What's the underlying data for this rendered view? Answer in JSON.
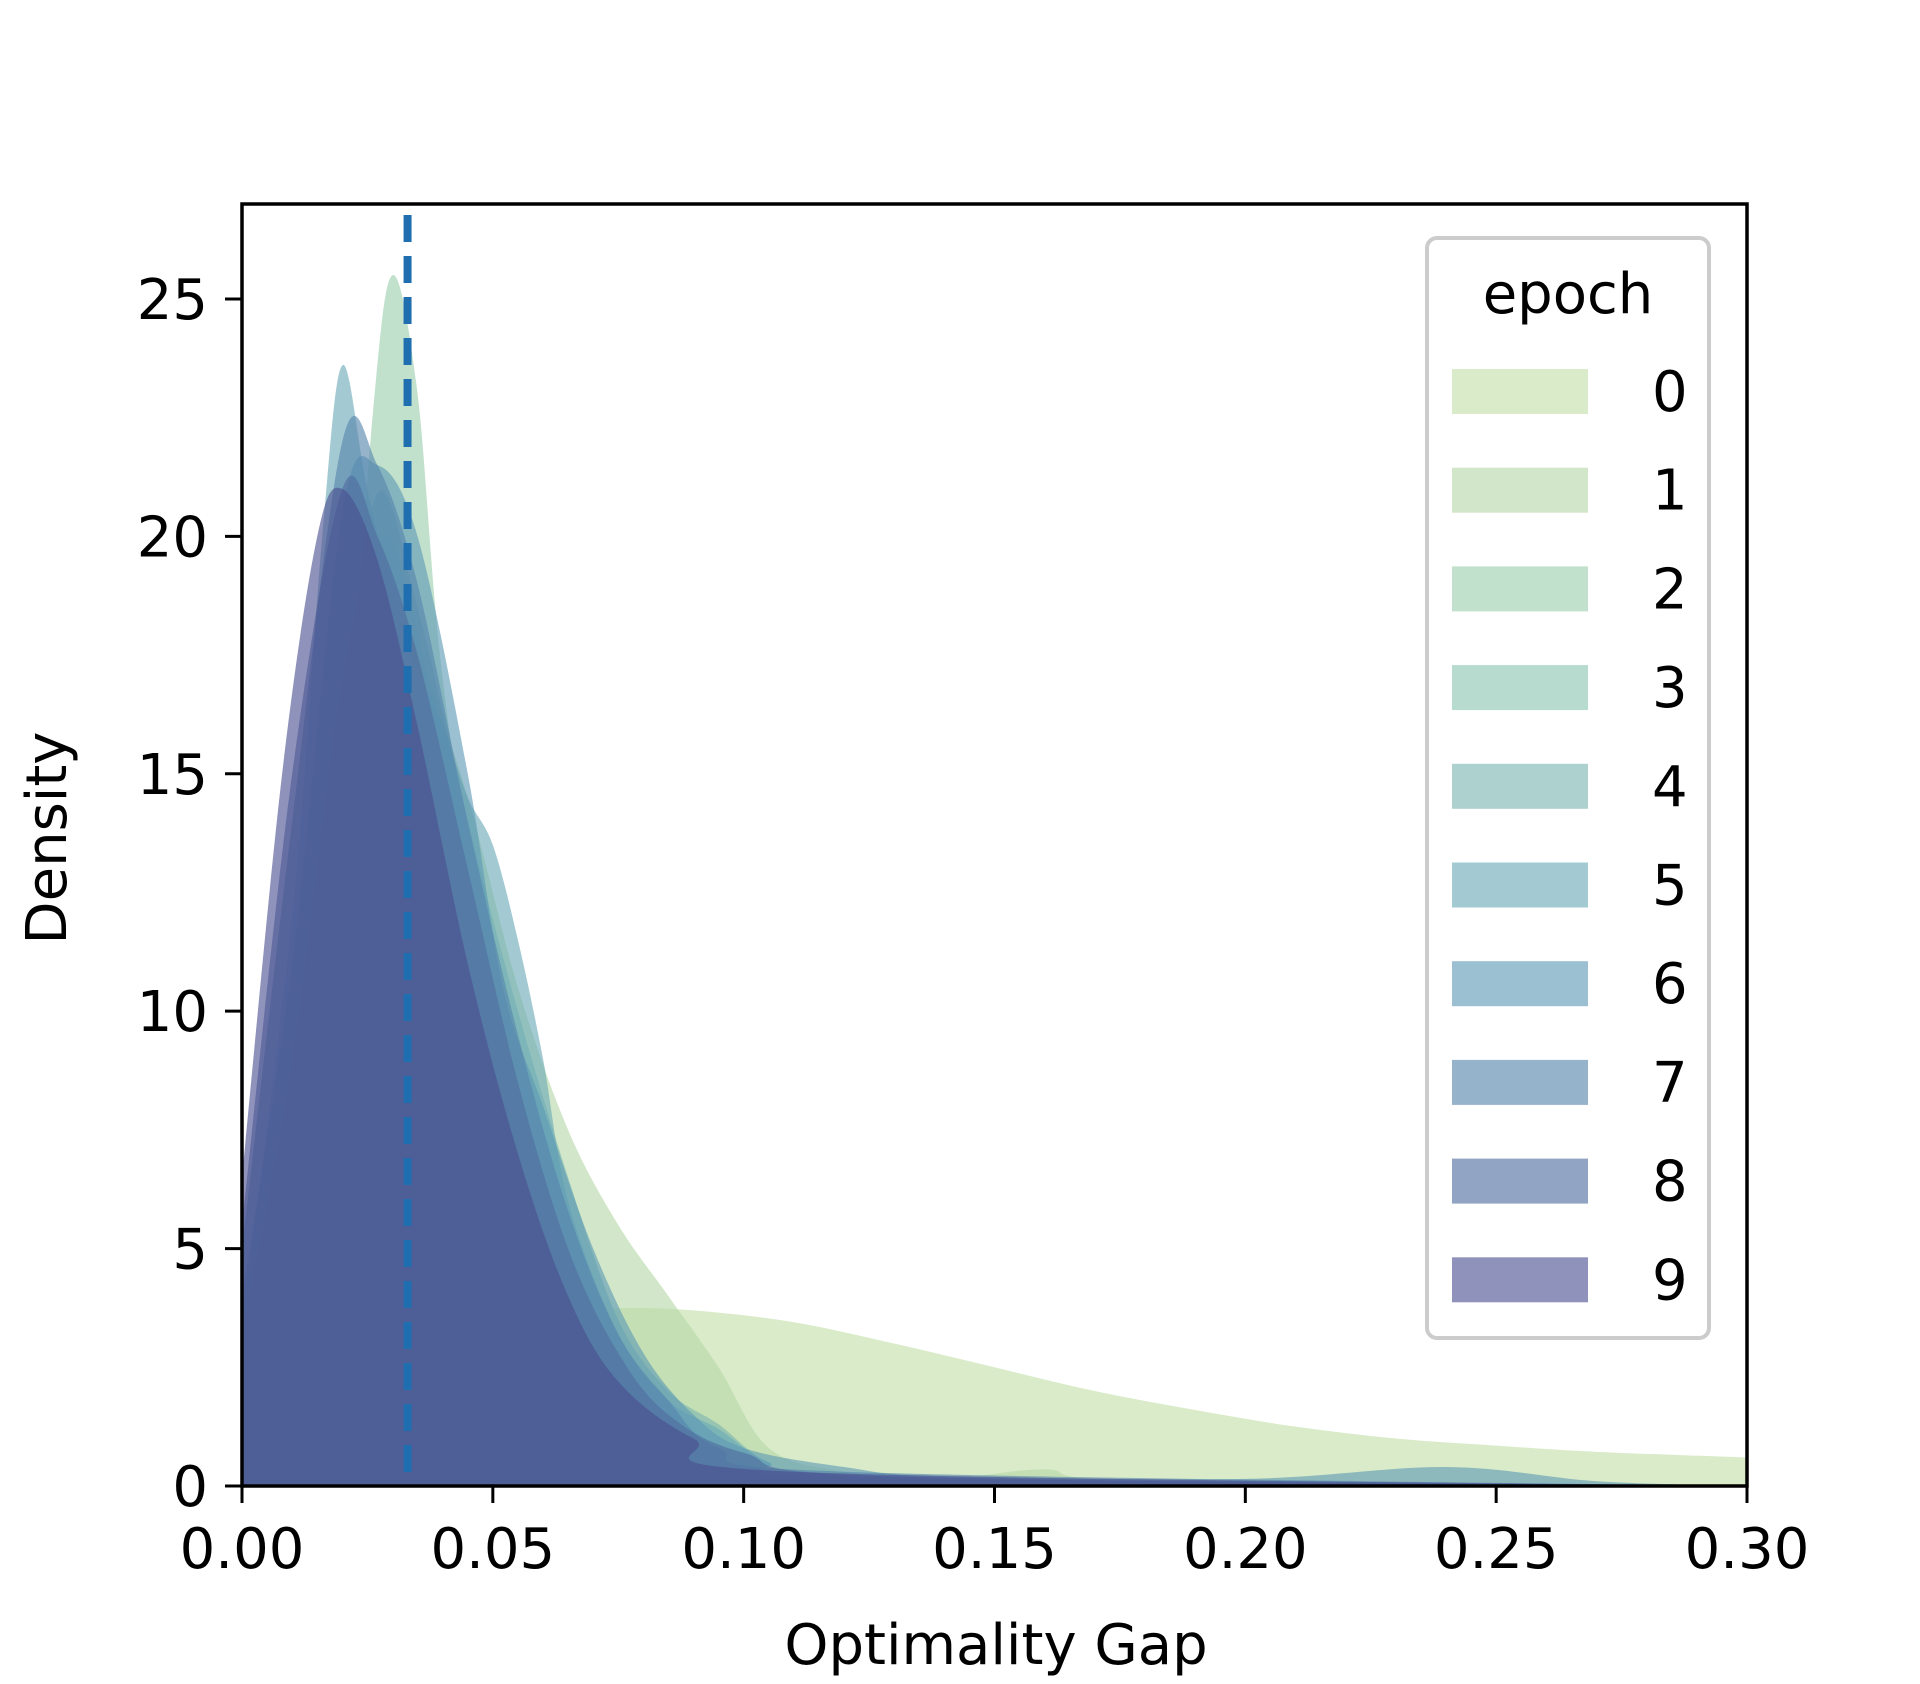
{
  "chart_data": {
    "type": "area",
    "title": "",
    "xlabel": "Optimality Gap",
    "ylabel": "Density",
    "xlim": [
      0,
      0.3
    ],
    "ylim": [
      0,
      27
    ],
    "x_ticks": [
      "0.00",
      "0.05",
      "0.10",
      "0.15",
      "0.20",
      "0.25",
      "0.30"
    ],
    "y_ticks": [
      "0",
      "5",
      "10",
      "15",
      "20",
      "25"
    ],
    "grid": false,
    "legend": {
      "title": "epoch",
      "placement": "top-right"
    },
    "reference_line": {
      "x": 0.033,
      "style": "dashed",
      "color": "#1f6fb0"
    },
    "series": [
      {
        "name": "0",
        "color": "#c2dea8",
        "points": [
          [
            0,
            2.5
          ],
          [
            0.02,
            3.0
          ],
          [
            0.04,
            3.45
          ],
          [
            0.06,
            3.7
          ],
          [
            0.075,
            3.75
          ],
          [
            0.09,
            3.7
          ],
          [
            0.11,
            3.45
          ],
          [
            0.13,
            3.0
          ],
          [
            0.15,
            2.5
          ],
          [
            0.17,
            2.0
          ],
          [
            0.19,
            1.6
          ],
          [
            0.21,
            1.25
          ],
          [
            0.23,
            1.0
          ],
          [
            0.25,
            0.85
          ],
          [
            0.27,
            0.72
          ],
          [
            0.3,
            0.6
          ]
        ]
      },
      {
        "name": "1",
        "color": "#b7d9a8",
        "points": [
          [
            0,
            0
          ],
          [
            0.01,
            5.0
          ],
          [
            0.02,
            12.5
          ],
          [
            0.03,
            17.7
          ],
          [
            0.035,
            17.6
          ],
          [
            0.045,
            14.5
          ],
          [
            0.055,
            10.5
          ],
          [
            0.065,
            7.5
          ],
          [
            0.075,
            5.5
          ],
          [
            0.085,
            4.0
          ],
          [
            0.095,
            2.5
          ],
          [
            0.105,
            0.8
          ],
          [
            0.12,
            0.3
          ],
          [
            0.14,
            0.15
          ],
          [
            0.16,
            0.35
          ],
          [
            0.18,
            0.1
          ],
          [
            0.3,
            0
          ]
        ]
      },
      {
        "name": "2",
        "color": "#9ccfac",
        "points": [
          [
            0,
            0
          ],
          [
            0.01,
            4.0
          ],
          [
            0.02,
            14.0
          ],
          [
            0.026,
            22.5
          ],
          [
            0.03,
            25.5
          ],
          [
            0.035,
            23.0
          ],
          [
            0.04,
            17.0
          ],
          [
            0.05,
            10.0
          ],
          [
            0.06,
            5.5
          ],
          [
            0.07,
            2.5
          ],
          [
            0.08,
            1.0
          ],
          [
            0.09,
            0.5
          ],
          [
            0.1,
            0.3
          ],
          [
            0.13,
            0.1
          ],
          [
            0.3,
            0
          ]
        ]
      },
      {
        "name": "3",
        "color": "#8bc5b1",
        "points": [
          [
            0,
            3.2
          ],
          [
            0.01,
            9.0
          ],
          [
            0.02,
            17.0
          ],
          [
            0.028,
            20.0
          ],
          [
            0.035,
            18.0
          ],
          [
            0.045,
            13.0
          ],
          [
            0.055,
            8.5
          ],
          [
            0.065,
            5.0
          ],
          [
            0.075,
            2.5
          ],
          [
            0.09,
            1.2
          ],
          [
            0.1,
            0.5
          ],
          [
            0.13,
            0.2
          ],
          [
            0.3,
            0
          ]
        ]
      },
      {
        "name": "4",
        "color": "#7ab5b1",
        "points": [
          [
            0,
            2.5
          ],
          [
            0.01,
            8.0
          ],
          [
            0.02,
            16.0
          ],
          [
            0.027,
            20.9
          ],
          [
            0.035,
            18.5
          ],
          [
            0.045,
            14.0
          ],
          [
            0.055,
            10.0
          ],
          [
            0.065,
            6.5
          ],
          [
            0.075,
            3.5
          ],
          [
            0.085,
            2.0
          ],
          [
            0.095,
            1.3
          ],
          [
            0.105,
            0.5
          ],
          [
            0.12,
            0.2
          ],
          [
            0.3,
            0
          ]
        ]
      },
      {
        "name": "5",
        "color": "#6aa9b6",
        "points": [
          [
            0,
            3.5
          ],
          [
            0.01,
            12.0
          ],
          [
            0.016,
            20.0
          ],
          [
            0.02,
            23.6
          ],
          [
            0.025,
            21.0
          ],
          [
            0.032,
            18.0
          ],
          [
            0.04,
            16.0
          ],
          [
            0.045,
            14.5
          ],
          [
            0.05,
            13.5
          ],
          [
            0.055,
            11.5
          ],
          [
            0.06,
            9.0
          ],
          [
            0.065,
            6.0
          ],
          [
            0.075,
            3.2
          ],
          [
            0.085,
            1.8
          ],
          [
            0.095,
            1.2
          ],
          [
            0.105,
            0.5
          ],
          [
            0.12,
            0.2
          ],
          [
            0.3,
            0
          ]
        ]
      },
      {
        "name": "6",
        "color": "#5d99b5",
        "points": [
          [
            0,
            4.0
          ],
          [
            0.01,
            11.0
          ],
          [
            0.02,
            20.5
          ],
          [
            0.027,
            21.5
          ],
          [
            0.035,
            20.0
          ],
          [
            0.045,
            15.0
          ],
          [
            0.052,
            10.5
          ],
          [
            0.06,
            8.0
          ],
          [
            0.07,
            5.0
          ],
          [
            0.08,
            2.8
          ],
          [
            0.09,
            1.5
          ],
          [
            0.1,
            0.8
          ],
          [
            0.12,
            0.4
          ],
          [
            0.14,
            0.2
          ],
          [
            0.2,
            0.15
          ],
          [
            0.24,
            0.4
          ],
          [
            0.27,
            0.1
          ],
          [
            0.3,
            0
          ]
        ]
      },
      {
        "name": "7",
        "color": "#5584ad",
        "points": [
          [
            0,
            5.0
          ],
          [
            0.01,
            14.0
          ],
          [
            0.02,
            22.0
          ],
          [
            0.027,
            21.5
          ],
          [
            0.035,
            19.0
          ],
          [
            0.045,
            14.0
          ],
          [
            0.055,
            9.5
          ],
          [
            0.065,
            5.8
          ],
          [
            0.075,
            3.2
          ],
          [
            0.085,
            1.8
          ],
          [
            0.095,
            0.8
          ],
          [
            0.12,
            0.3
          ],
          [
            0.3,
            0
          ]
        ]
      },
      {
        "name": "8",
        "color": "#4f6c9e",
        "points": [
          [
            0,
            5.5
          ],
          [
            0.01,
            15.0
          ],
          [
            0.02,
            21.0
          ],
          [
            0.027,
            20.0
          ],
          [
            0.035,
            17.5
          ],
          [
            0.045,
            13.0
          ],
          [
            0.055,
            8.5
          ],
          [
            0.065,
            5.0
          ],
          [
            0.075,
            2.8
          ],
          [
            0.085,
            1.5
          ],
          [
            0.1,
            0.7
          ],
          [
            0.13,
            0.2
          ],
          [
            0.3,
            0
          ]
        ]
      },
      {
        "name": "9",
        "color": "#4a4f8f",
        "points": [
          [
            0,
            6.5
          ],
          [
            0.008,
            15.0
          ],
          [
            0.015,
            20.0
          ],
          [
            0.02,
            21.0
          ],
          [
            0.027,
            19.5
          ],
          [
            0.035,
            16.0
          ],
          [
            0.045,
            11.0
          ],
          [
            0.055,
            7.0
          ],
          [
            0.065,
            4.0
          ],
          [
            0.075,
            2.2
          ],
          [
            0.09,
            1.0
          ],
          [
            0.11,
            0.3
          ],
          [
            0.3,
            0
          ]
        ]
      }
    ]
  }
}
